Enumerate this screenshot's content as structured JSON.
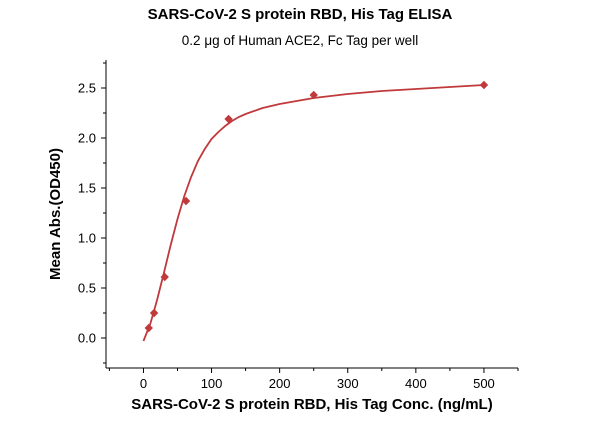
{
  "chart_data": {
    "type": "scatter",
    "title": "SARS-CoV-2 S protein RBD, His Tag ELISA",
    "subtitle": "0.2 μg of Human ACE2, Fc Tag per well",
    "xlabel": "SARS-CoV-2 S protein RBD, His Tag Conc. (ng/mL)",
    "ylabel": "Mean Abs.(OD450)",
    "xlim": [
      -55,
      550
    ],
    "ylim": [
      -0.3,
      2.78
    ],
    "xticks": [
      0,
      100,
      200,
      300,
      400,
      500
    ],
    "yticks": [
      0.0,
      0.5,
      1.0,
      1.5,
      2.0,
      2.5
    ],
    "xtick_labels": [
      "0",
      "100",
      "200",
      "300",
      "400",
      "500"
    ],
    "ytick_labels": [
      "0.0",
      "0.5",
      "1.0",
      "1.5",
      "2.0",
      "2.5"
    ],
    "grid": false,
    "marker_color": "#c0393b",
    "curve_color": "#c0393b",
    "series": [
      {
        "x": [
          7.8,
          15.6,
          31.25,
          62.5,
          125,
          250,
          500
        ],
        "y": [
          0.1,
          0.25,
          0.61,
          1.37,
          2.19,
          2.43,
          2.53
        ],
        "marker": "diamond"
      }
    ],
    "fit_curve": {
      "x": [
        0,
        10,
        20,
        30,
        40,
        50,
        60,
        70,
        80,
        90,
        100,
        110,
        120,
        130,
        140,
        150,
        175,
        200,
        250,
        300,
        350,
        400,
        450,
        500
      ],
      "y": [
        -0.03,
        0.14,
        0.38,
        0.65,
        0.93,
        1.19,
        1.42,
        1.61,
        1.77,
        1.89,
        1.99,
        2.06,
        2.12,
        2.17,
        2.21,
        2.24,
        2.3,
        2.34,
        2.4,
        2.44,
        2.47,
        2.49,
        2.51,
        2.53
      ]
    }
  }
}
